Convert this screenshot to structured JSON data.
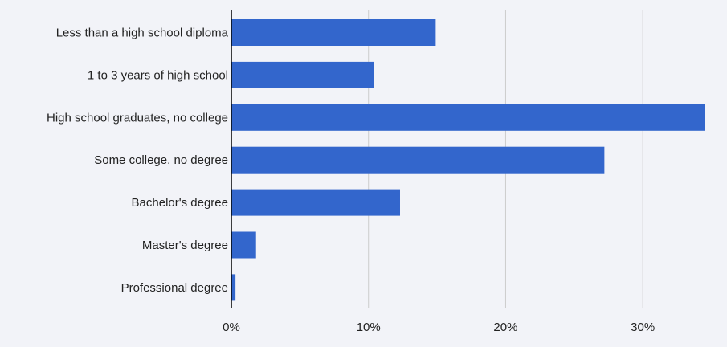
{
  "chart_data": {
    "type": "bar",
    "orientation": "horizontal",
    "categories": [
      "Less than a high school diploma",
      "1 to 3 years of high school",
      "High school graduates, no college",
      "Some college, no degree",
      "Bachelor's degree",
      "Master's degree",
      "Professional degree"
    ],
    "values": [
      14.9,
      10.4,
      34.5,
      27.2,
      12.3,
      1.8,
      0.3
    ],
    "value_unit": "%",
    "xlim": [
      0,
      34.5
    ],
    "xticks": [
      0,
      10,
      20,
      30
    ],
    "xtick_labels": [
      "0%",
      "10%",
      "20%",
      "30%"
    ],
    "title": "",
    "xlabel": "",
    "ylabel": "",
    "grid": "vertical",
    "legend": "none",
    "colors": {
      "bar": "#3366cc",
      "grid": "#cccccc",
      "axis": "#000000",
      "background": "#f2f3f8"
    }
  }
}
